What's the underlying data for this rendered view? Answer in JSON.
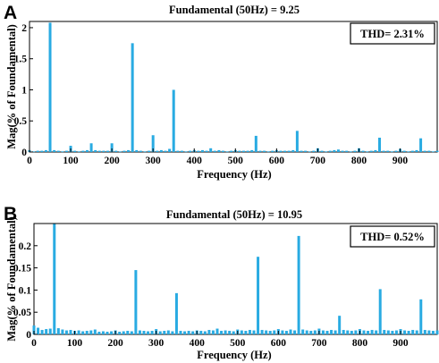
{
  "chart_data": [
    {
      "panel": "A",
      "type": "bar",
      "title": "Fundamental (50Hz) = 9.25",
      "annotation": "THD= 2.31%",
      "xlabel": "Frequency (Hz)",
      "ylabel": "Mag(% of Foundamental)",
      "xlim": [
        0,
        990
      ],
      "ylim": [
        0,
        2.1
      ],
      "xticks": [
        0,
        100,
        200,
        300,
        400,
        500,
        600,
        700,
        800,
        900
      ],
      "yticks": [
        0,
        0.5,
        1,
        1.5,
        2
      ],
      "ytick_labels": [
        "0",
        "0.5",
        "1",
        "1.5",
        "2"
      ],
      "color": "#29abe2",
      "x": [
        0,
        10,
        20,
        30,
        40,
        50,
        60,
        70,
        80,
        90,
        100,
        110,
        120,
        130,
        140,
        150,
        160,
        170,
        180,
        190,
        200,
        210,
        220,
        230,
        240,
        250,
        260,
        270,
        280,
        290,
        300,
        310,
        320,
        330,
        340,
        350,
        360,
        370,
        380,
        390,
        400,
        410,
        420,
        430,
        440,
        450,
        460,
        470,
        480,
        490,
        500,
        510,
        520,
        530,
        540,
        550,
        560,
        570,
        580,
        590,
        600,
        610,
        620,
        630,
        640,
        650,
        660,
        670,
        680,
        690,
        700,
        710,
        720,
        730,
        740,
        750,
        760,
        770,
        780,
        790,
        800,
        810,
        820,
        830,
        840,
        850,
        860,
        870,
        880,
        890,
        900,
        910,
        920,
        930,
        940,
        950,
        960,
        970,
        980,
        990
      ],
      "values": [
        0.03,
        0.01,
        0.02,
        0.02,
        0.03,
        2.08,
        0.03,
        0.02,
        0.01,
        0.02,
        0.1,
        0.02,
        0.01,
        0.02,
        0.03,
        0.14,
        0.03,
        0.02,
        0.02,
        0.02,
        0.14,
        0.02,
        0.01,
        0.02,
        0.03,
        1.75,
        0.03,
        0.02,
        0.01,
        0.02,
        0.27,
        0.02,
        0.03,
        0.02,
        0.05,
        1.0,
        0.02,
        0.02,
        0.01,
        0.02,
        0.03,
        0.02,
        0.03,
        0.02,
        0.06,
        0.02,
        0.03,
        0.02,
        0.01,
        0.02,
        0.03,
        0.02,
        0.02,
        0.02,
        0.03,
        0.26,
        0.02,
        0.02,
        0.01,
        0.02,
        0.03,
        0.02,
        0.02,
        0.02,
        0.03,
        0.34,
        0.02,
        0.02,
        0.01,
        0.02,
        0.06,
        0.02,
        0.01,
        0.02,
        0.03,
        0.04,
        0.02,
        0.02,
        0.01,
        0.02,
        0.06,
        0.02,
        0.01,
        0.02,
        0.03,
        0.23,
        0.02,
        0.02,
        0.01,
        0.02,
        0.05,
        0.02,
        0.01,
        0.02,
        0.03,
        0.22,
        0.02,
        0.02,
        0.01,
        0.02
      ]
    },
    {
      "panel": "B",
      "type": "bar",
      "title": "Fundamental (50Hz) = 10.95",
      "annotation": "THD= 0.52%",
      "xlabel": "Frequency (Hz)",
      "ylabel": "Mag(% of Foundamental)",
      "xlim": [
        0,
        990
      ],
      "ylim": [
        0,
        0.25
      ],
      "xticks": [
        0,
        100,
        200,
        300,
        400,
        500,
        600,
        700,
        800,
        900
      ],
      "yticks": [
        0,
        0.05,
        0.1,
        0.15,
        0.2
      ],
      "ytick_labels": [
        "0",
        "0.05",
        "0.1",
        "0.15",
        "0.2"
      ],
      "color": "#29abe2",
      "x": [
        0,
        10,
        20,
        30,
        40,
        50,
        60,
        70,
        80,
        90,
        100,
        110,
        120,
        130,
        140,
        150,
        160,
        170,
        180,
        190,
        200,
        210,
        220,
        230,
        240,
        250,
        260,
        270,
        280,
        290,
        300,
        310,
        320,
        330,
        340,
        350,
        360,
        370,
        380,
        390,
        400,
        410,
        420,
        430,
        440,
        450,
        460,
        470,
        480,
        490,
        500,
        510,
        520,
        530,
        540,
        550,
        560,
        570,
        580,
        590,
        600,
        610,
        620,
        630,
        640,
        650,
        660,
        670,
        680,
        690,
        700,
        710,
        720,
        730,
        740,
        750,
        760,
        770,
        780,
        790,
        800,
        810,
        820,
        830,
        840,
        850,
        860,
        870,
        880,
        890,
        900,
        910,
        920,
        930,
        940,
        950,
        960,
        970,
        980,
        990
      ],
      "values": [
        0.02,
        0.015,
        0.01,
        0.012,
        0.013,
        0.25,
        0.014,
        0.011,
        0.009,
        0.01,
        0.008,
        0.009,
        0.007,
        0.008,
        0.009,
        0.011,
        0.006,
        0.007,
        0.006,
        0.007,
        0.009,
        0.006,
        0.007,
        0.008,
        0.007,
        0.145,
        0.009,
        0.008,
        0.007,
        0.008,
        0.012,
        0.007,
        0.008,
        0.009,
        0.007,
        0.093,
        0.008,
        0.007,
        0.008,
        0.007,
        0.009,
        0.008,
        0.007,
        0.01,
        0.009,
        0.013,
        0.008,
        0.009,
        0.008,
        0.007,
        0.011,
        0.009,
        0.008,
        0.01,
        0.009,
        0.175,
        0.01,
        0.009,
        0.008,
        0.009,
        0.012,
        0.009,
        0.008,
        0.011,
        0.009,
        0.222,
        0.011,
        0.009,
        0.008,
        0.009,
        0.013,
        0.009,
        0.008,
        0.01,
        0.009,
        0.042,
        0.01,
        0.009,
        0.008,
        0.009,
        0.012,
        0.009,
        0.008,
        0.01,
        0.009,
        0.102,
        0.01,
        0.009,
        0.008,
        0.009,
        0.012,
        0.009,
        0.008,
        0.01,
        0.009,
        0.079,
        0.01,
        0.009,
        0.008,
        0.009
      ]
    }
  ]
}
